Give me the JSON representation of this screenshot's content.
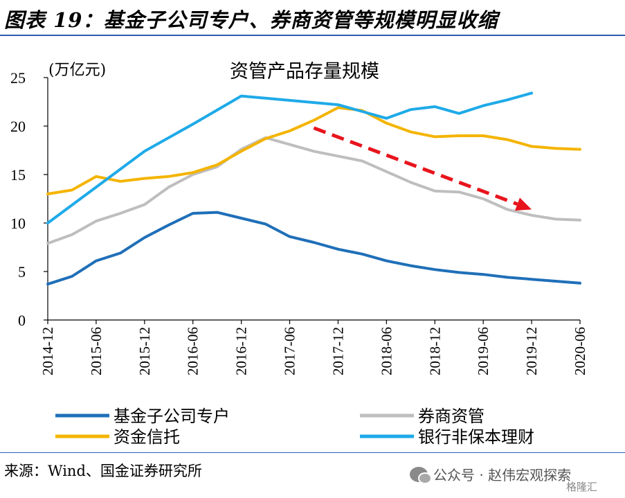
{
  "figure": {
    "title": "图表 19：基金子公司专户、券商资管等规模明显收缩",
    "source": "来源：Wind、国金证券研究所"
  },
  "watermark": {
    "text": "公众号 · 赵伟宏观探索",
    "corner": "格隆汇",
    "icon": "wechat-icon"
  },
  "chart_data": {
    "type": "line",
    "title": "资管产品存量规模",
    "unit_label": "(万亿元)",
    "xlabel": "",
    "ylabel": "",
    "ylim": [
      0,
      25
    ],
    "yticks": [
      "0",
      "5",
      "10",
      "15",
      "20",
      "25"
    ],
    "x": [
      "2014-12",
      "2015-03",
      "2015-06",
      "2015-09",
      "2015-12",
      "2016-03",
      "2016-06",
      "2016-09",
      "2016-12",
      "2017-03",
      "2017-06",
      "2017-09",
      "2017-12",
      "2018-03",
      "2018-06",
      "2018-09",
      "2018-12",
      "2019-03",
      "2019-06",
      "2019-09",
      "2019-12",
      "2020-03",
      "2020-06"
    ],
    "xtick_labels": [
      "2014-12",
      "2015-06",
      "2015-12",
      "2016-06",
      "2016-12",
      "2017-06",
      "2017-12",
      "2018-06",
      "2018-12",
      "2019-06",
      "2019-12",
      "2020-06"
    ],
    "grid": false,
    "legend_position": "bottom",
    "series": [
      {
        "name": "基金子公司专户",
        "color": "#1f6fb8",
        "values": [
          3.7,
          4.5,
          6.1,
          6.9,
          8.5,
          9.8,
          11.0,
          11.1,
          10.5,
          9.9,
          8.6,
          8.0,
          7.3,
          6.8,
          6.1,
          5.6,
          5.2,
          4.9,
          4.7,
          4.4,
          4.2,
          4.0,
          3.8
        ]
      },
      {
        "name": "券商资管",
        "color": "#bebebe",
        "values": [
          7.9,
          8.8,
          10.2,
          11.0,
          11.9,
          13.7,
          15.0,
          15.8,
          17.6,
          18.8,
          18.1,
          17.4,
          16.9,
          16.4,
          15.3,
          14.2,
          13.3,
          13.2,
          12.5,
          11.4,
          10.8,
          10.4,
          10.3
        ]
      },
      {
        "name": "资金信托",
        "color": "#f4b400",
        "values": [
          13.0,
          13.4,
          14.8,
          14.3,
          14.6,
          14.8,
          15.2,
          16.0,
          17.4,
          18.7,
          19.5,
          20.6,
          21.9,
          21.6,
          20.3,
          19.4,
          18.9,
          19.0,
          19.0,
          18.6,
          17.9,
          17.7,
          17.6
        ]
      },
      {
        "name": "银行非保本理财",
        "color": "#1eaae8",
        "values": [
          10.0,
          null,
          null,
          null,
          17.4,
          null,
          20.2,
          null,
          23.1,
          null,
          null,
          null,
          22.2,
          21.5,
          20.8,
          21.7,
          22.0,
          21.3,
          22.1,
          22.7,
          23.4,
          null,
          null
        ]
      }
    ],
    "annotations": [
      {
        "type": "arrow",
        "color": "#e8141c",
        "style": "dashed",
        "from": [
          "2017-09",
          19.8
        ],
        "to": [
          "2019-12",
          11.4
        ]
      }
    ]
  }
}
